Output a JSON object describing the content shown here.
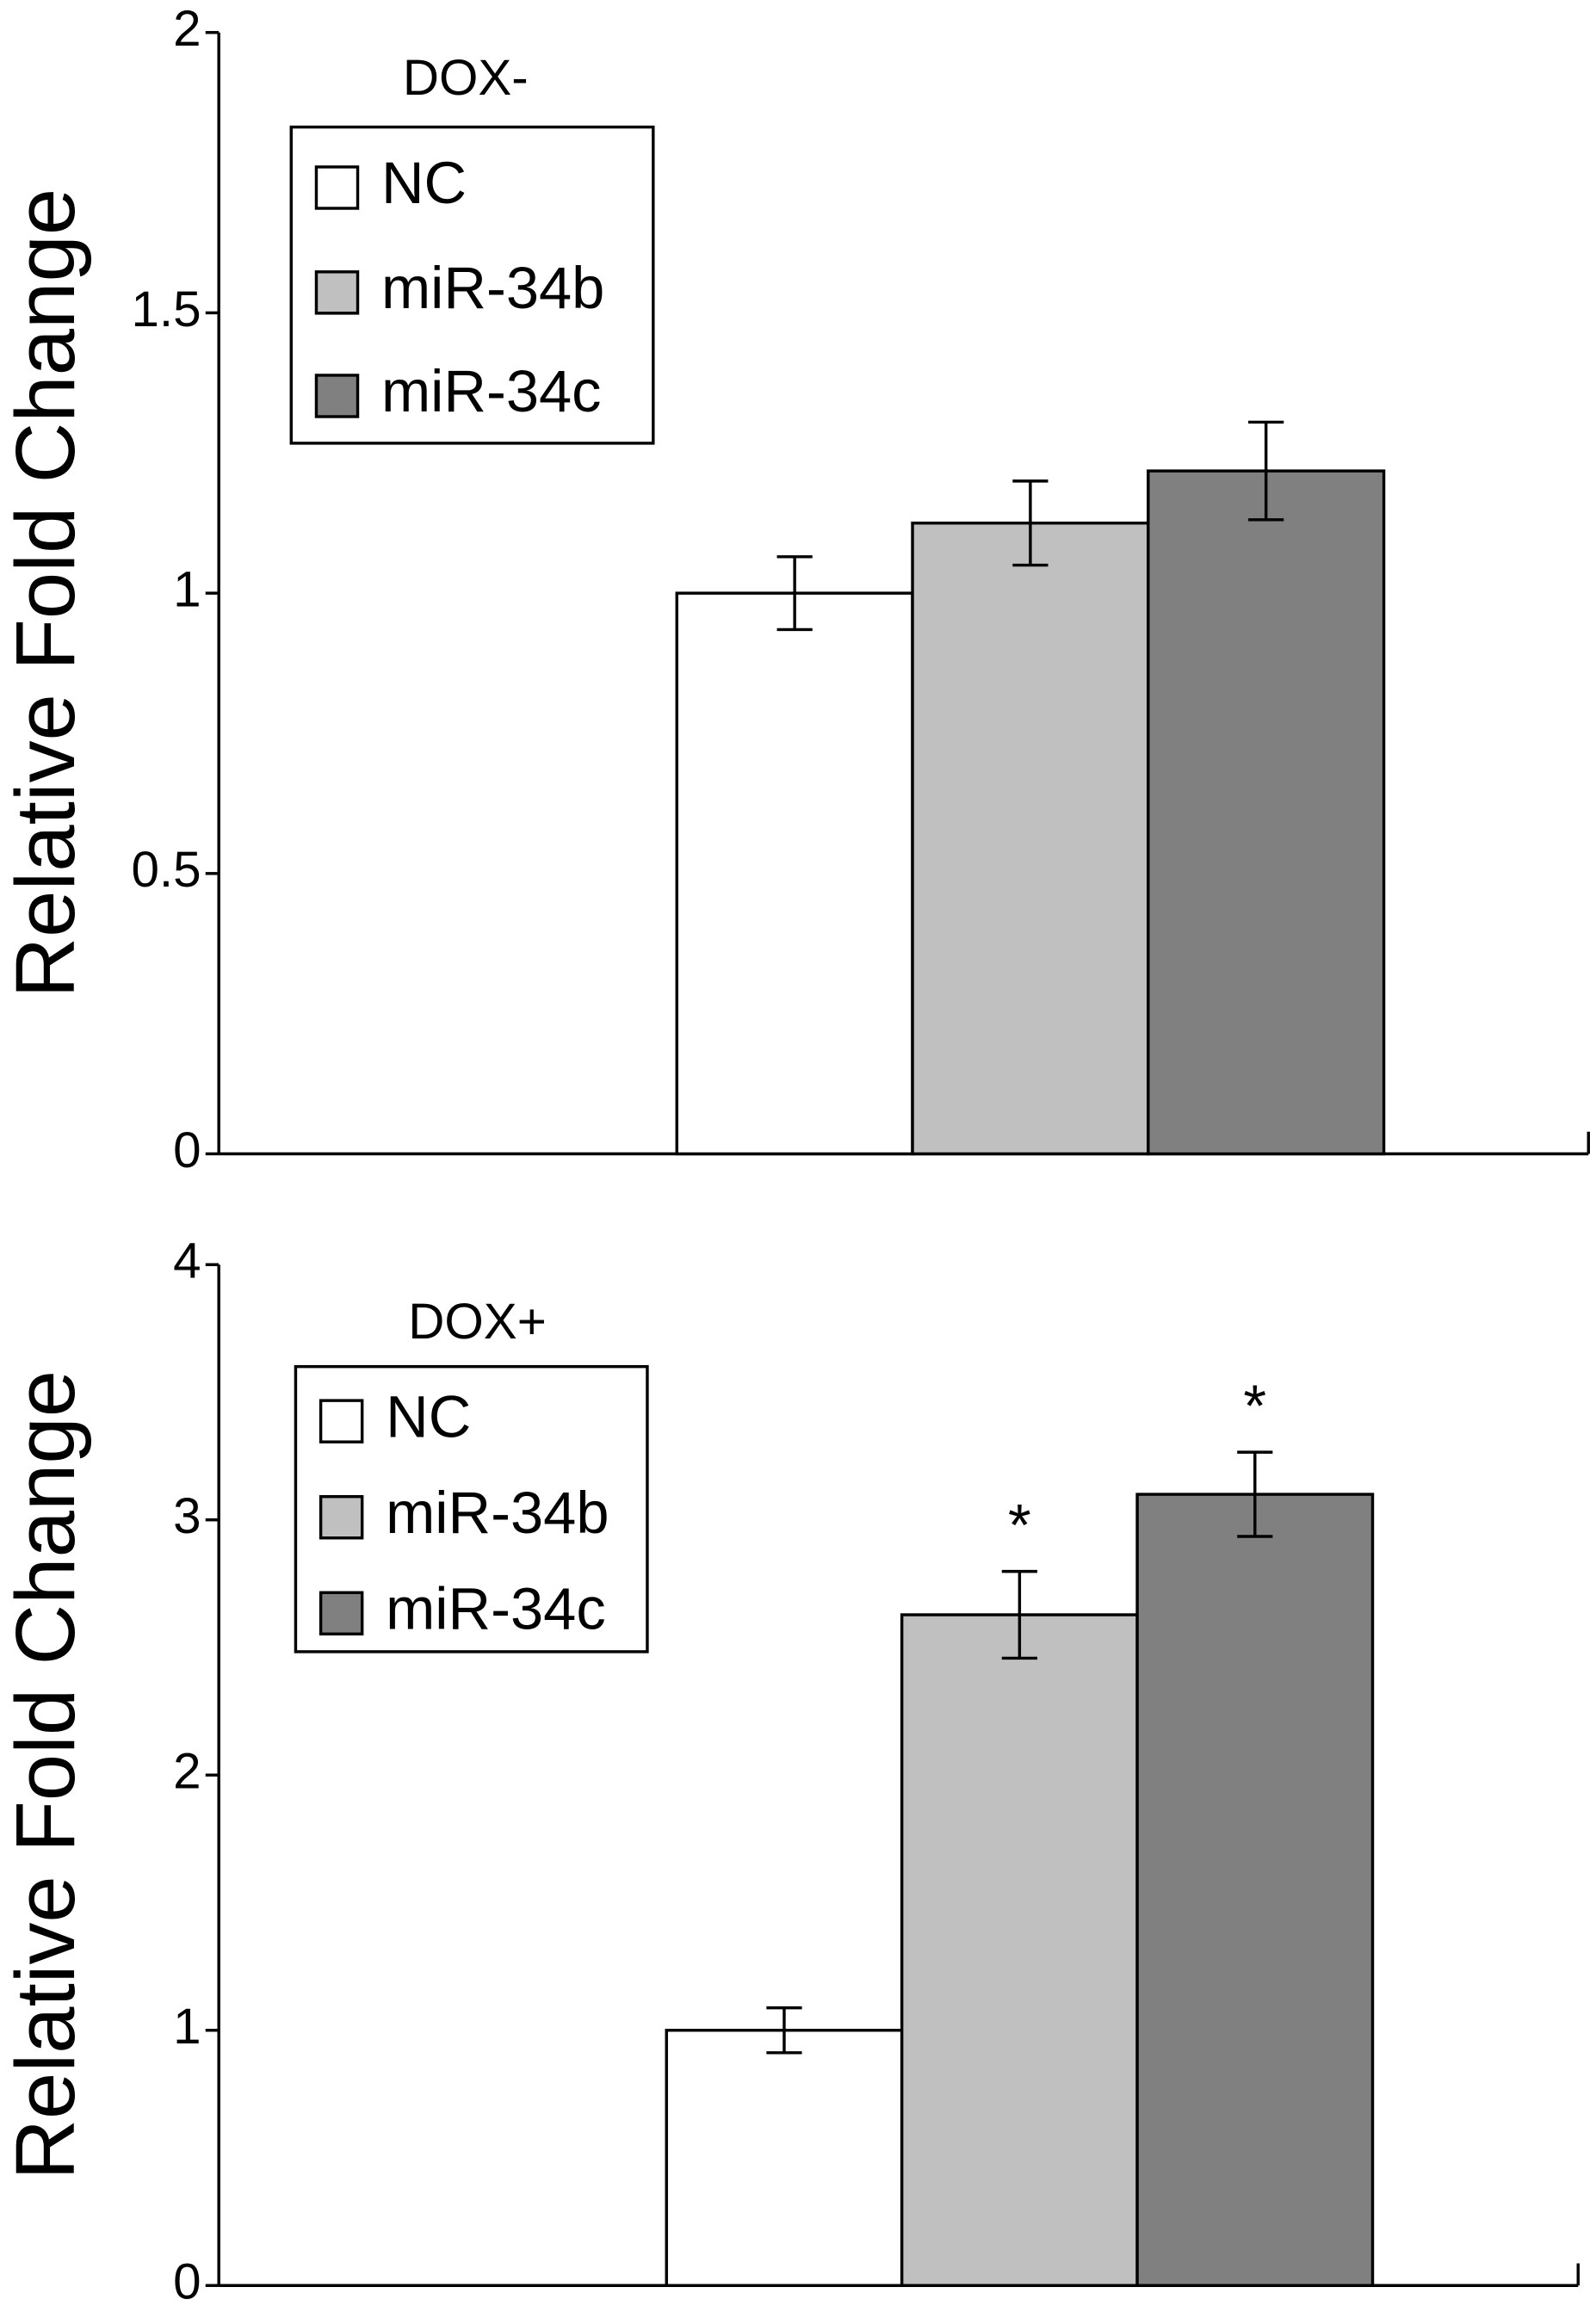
{
  "chart_data": [
    {
      "type": "bar",
      "ylabel": "Relative Fold Change",
      "legend_title": "DOX-",
      "categories": [
        null
      ],
      "ylim": [
        0,
        2
      ],
      "yticks": [
        0,
        0.5,
        1,
        1.5,
        2
      ],
      "series": [
        {
          "name": "NC",
          "color": "#ffffff",
          "values": [
            1.0
          ],
          "errors": [
            0.065
          ]
        },
        {
          "name": "miR-34b",
          "color": "#c0c0c0",
          "values": [
            1.125
          ],
          "errors": [
            0.075
          ]
        },
        {
          "name": "miR-34c",
          "color": "#808080",
          "values": [
            1.218
          ],
          "errors": [
            0.087
          ]
        }
      ]
    },
    {
      "type": "bar",
      "ylabel": "Relative Fold Change",
      "legend_title": "DOX+",
      "categories": [
        null
      ],
      "ylim": [
        0,
        4
      ],
      "yticks": [
        0,
        1,
        2,
        3,
        4
      ],
      "series": [
        {
          "name": "NC",
          "color": "#ffffff",
          "values": [
            1.0
          ],
          "errors": [
            0.088
          ],
          "significance": [
            null
          ]
        },
        {
          "name": "miR-34b",
          "color": "#c0c0c0",
          "values": [
            2.628
          ],
          "errors": [
            0.17
          ],
          "significance": [
            "*"
          ]
        },
        {
          "name": "miR-34c",
          "color": "#808080",
          "values": [
            3.1
          ],
          "errors": [
            0.165
          ],
          "significance": [
            "*"
          ]
        }
      ]
    }
  ]
}
